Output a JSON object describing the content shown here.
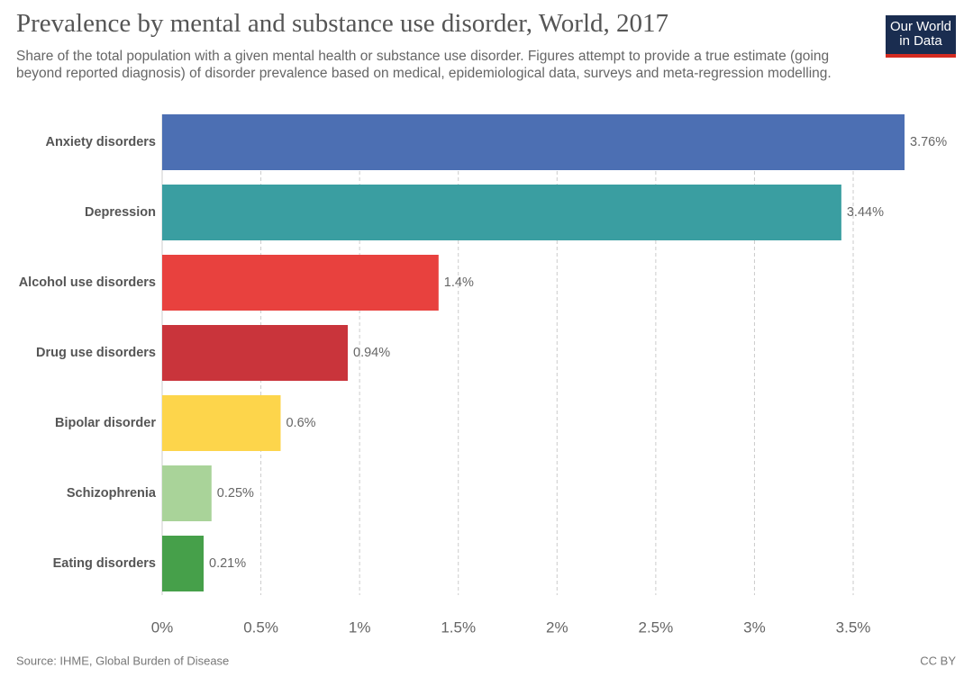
{
  "chart_data": {
    "type": "bar",
    "orientation": "horizontal",
    "title": "Prevalence by mental and substance use disorder, World, 2017",
    "subtitle": "Share of the total population with a given mental health or substance use disorder. Figures attempt to provide a true estimate (going beyond reported diagnosis) of disorder prevalence based on medical, epidemiological data, surveys and meta-regression modelling.",
    "categories": [
      "Anxiety disorders",
      "Depression",
      "Alcohol use disorders",
      "Drug use disorders",
      "Bipolar disorder",
      "Schizophrenia",
      "Eating disorders"
    ],
    "values": [
      3.76,
      3.44,
      1.4,
      0.94,
      0.6,
      0.25,
      0.21
    ],
    "value_labels": [
      "3.76%",
      "3.44%",
      "1.4%",
      "0.94%",
      "0.6%",
      "0.25%",
      "0.21%"
    ],
    "colors": [
      "#4c6fb3",
      "#3a9ea1",
      "#e8413e",
      "#c9343b",
      "#fdd54b",
      "#a9d399",
      "#46a04a"
    ],
    "xlim": [
      0,
      3.76
    ],
    "xticks": [
      {
        "value": 0,
        "label": "0%"
      },
      {
        "value": 0.5,
        "label": "0.5%"
      },
      {
        "value": 1,
        "label": "1%"
      },
      {
        "value": 1.5,
        "label": "1.5%"
      },
      {
        "value": 2,
        "label": "2%"
      },
      {
        "value": 2.5,
        "label": "2.5%"
      },
      {
        "value": 3,
        "label": "3%"
      },
      {
        "value": 3.5,
        "label": "3.5%"
      }
    ],
    "grid": true,
    "source": "Source: IHME, Global Burden of Disease",
    "license": "CC BY"
  },
  "logo": [
    "Our World",
    "in Data"
  ]
}
